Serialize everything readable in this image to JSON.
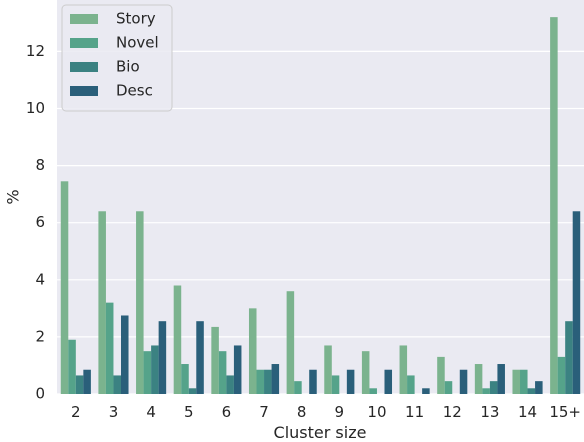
{
  "chart_data": {
    "type": "bar",
    "categories": [
      "2",
      "3",
      "4",
      "5",
      "6",
      "7",
      "8",
      "9",
      "10",
      "11",
      "12",
      "13",
      "14",
      "15+"
    ],
    "series": [
      {
        "name": "Story",
        "color": "#7bb38e",
        "values": [
          7.45,
          6.4,
          6.4,
          3.8,
          2.35,
          3.0,
          3.6,
          1.7,
          1.5,
          1.7,
          1.3,
          1.05,
          0.85,
          13.2
        ]
      },
      {
        "name": "Novel",
        "color": "#55a38a",
        "values": [
          1.9,
          3.2,
          1.5,
          1.05,
          1.5,
          0.85,
          0.45,
          0.65,
          0.2,
          0.65,
          0.45,
          0.2,
          0.85,
          1.3
        ]
      },
      {
        "name": "Bio",
        "color": "#3b8282",
        "values": [
          0.65,
          0.65,
          1.7,
          0.2,
          0.65,
          0.85,
          0.0,
          0.0,
          0.0,
          0.0,
          0.0,
          0.45,
          0.2,
          2.55
        ]
      },
      {
        "name": "Desc",
        "color": "#2a5f7a",
        "values": [
          0.85,
          2.75,
          2.55,
          2.55,
          1.7,
          1.05,
          0.85,
          0.85,
          0.85,
          0.2,
          0.85,
          1.05,
          0.45,
          6.4
        ]
      }
    ],
    "xlabel": "Cluster size",
    "ylabel": "%",
    "ylim": [
      0,
      13.8
    ],
    "yticks": [
      0,
      2,
      4,
      6,
      8,
      10,
      12
    ],
    "grid": true,
    "legend_position": "top-left",
    "background": "#eaeaf2"
  }
}
